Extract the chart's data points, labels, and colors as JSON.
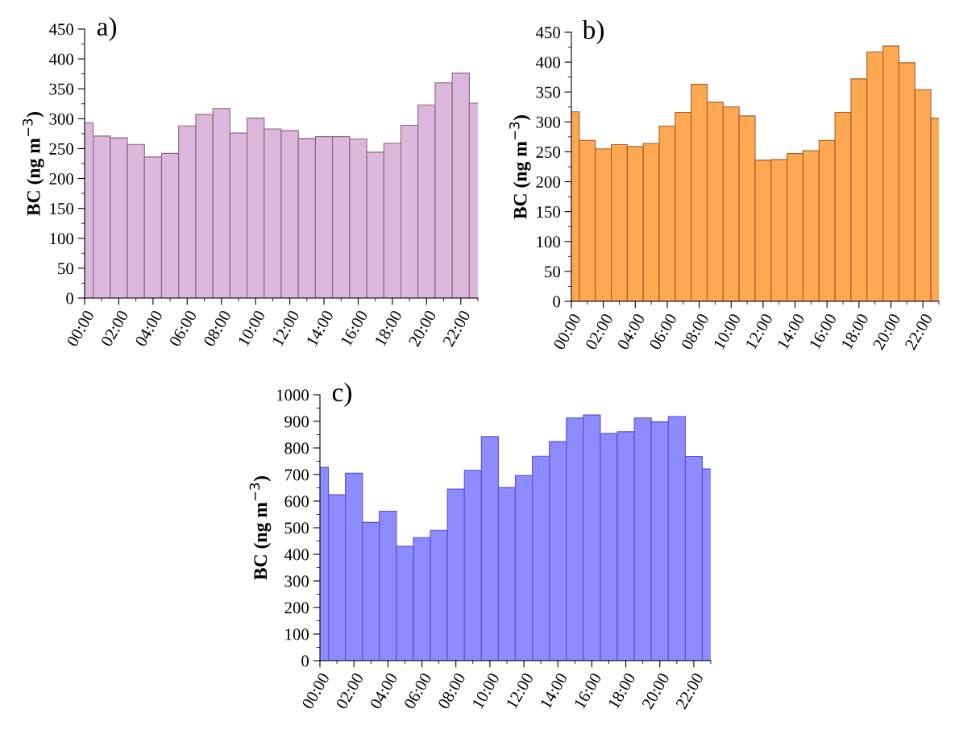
{
  "chart_data": [
    {
      "type": "bar",
      "title": "a)",
      "ylabel": "BC (ng m$^{−3}$)",
      "x": [
        0,
        1,
        2,
        3,
        4,
        5,
        6,
        7,
        8,
        9,
        10,
        11,
        12,
        13,
        14,
        15,
        16,
        17,
        18,
        19,
        20,
        21,
        22,
        23
      ],
      "xlim": [
        0,
        23
      ],
      "xticks": [
        {
          "value": 0,
          "label": "00:00"
        },
        {
          "value": 2,
          "label": "02:00"
        },
        {
          "value": 4,
          "label": "04:00"
        },
        {
          "value": 6,
          "label": "06:00"
        },
        {
          "value": 8,
          "label": "08:00"
        },
        {
          "value": 10,
          "label": "10:00"
        },
        {
          "value": 12,
          "label": "12:00"
        },
        {
          "value": 14,
          "label": "14:00"
        },
        {
          "value": 16,
          "label": "16:00"
        },
        {
          "value": 18,
          "label": "18:00"
        },
        {
          "value": 20,
          "label": "20:00"
        },
        {
          "value": 22,
          "label": "22:00"
        }
      ],
      "ylim": [
        0,
        450
      ],
      "yticks": [
        0,
        50,
        100,
        150,
        200,
        250,
        300,
        350,
        400,
        450
      ],
      "grid": false,
      "series": [
        {
          "color": "#dcb8dc",
          "values": [
            293,
            271,
            268,
            257,
            236,
            242,
            288,
            307,
            317,
            276,
            301,
            283,
            280,
            267,
            270,
            270,
            266,
            244,
            259,
            289,
            323,
            360,
            376,
            326
          ]
        }
      ]
    },
    {
      "type": "bar",
      "title": "b)",
      "ylabel": "BC (ng m$^{−3}$)",
      "x": [
        0,
        1,
        2,
        3,
        4,
        5,
        6,
        7,
        8,
        9,
        10,
        11,
        12,
        13,
        14,
        15,
        16,
        17,
        18,
        19,
        20,
        21,
        22,
        23
      ],
      "xlim": [
        0,
        23
      ],
      "xticks": [
        {
          "value": 0,
          "label": "00:00"
        },
        {
          "value": 2,
          "label": "02:00"
        },
        {
          "value": 4,
          "label": "04:00"
        },
        {
          "value": 6,
          "label": "06:00"
        },
        {
          "value": 8,
          "label": "08:00"
        },
        {
          "value": 10,
          "label": "10:00"
        },
        {
          "value": 12,
          "label": "12:00"
        },
        {
          "value": 14,
          "label": "14:00"
        },
        {
          "value": 16,
          "label": "16:00"
        },
        {
          "value": 18,
          "label": "18:00"
        },
        {
          "value": 20,
          "label": "20:00"
        },
        {
          "value": 22,
          "label": "22:00"
        }
      ],
      "ylim": [
        0,
        450
      ],
      "yticks": [
        0,
        50,
        100,
        150,
        200,
        250,
        300,
        350,
        400,
        450
      ],
      "grid": false,
      "series": [
        {
          "color": "#ffa852",
          "values": [
            317,
            269,
            255,
            262,
            259,
            264,
            293,
            316,
            363,
            333,
            325,
            310,
            236,
            237,
            247,
            252,
            269,
            316,
            372,
            417,
            427,
            399,
            354,
            306
          ]
        }
      ]
    },
    {
      "type": "bar",
      "title": "c)",
      "ylabel": "BC (ng m$^{−3}$)",
      "x": [
        0,
        1,
        2,
        3,
        4,
        5,
        6,
        7,
        8,
        9,
        10,
        11,
        12,
        13,
        14,
        15,
        16,
        17,
        18,
        19,
        20,
        21,
        22,
        23
      ],
      "xlim": [
        0,
        23
      ],
      "xticks": [
        {
          "value": 0,
          "label": "00:00"
        },
        {
          "value": 2,
          "label": "02:00"
        },
        {
          "value": 4,
          "label": "04:00"
        },
        {
          "value": 6,
          "label": "06:00"
        },
        {
          "value": 8,
          "label": "08:00"
        },
        {
          "value": 10,
          "label": "10:00"
        },
        {
          "value": 12,
          "label": "12:00"
        },
        {
          "value": 14,
          "label": "14:00"
        },
        {
          "value": 16,
          "label": "16:00"
        },
        {
          "value": 18,
          "label": "18:00"
        },
        {
          "value": 20,
          "label": "20:00"
        },
        {
          "value": 22,
          "label": "22:00"
        }
      ],
      "ylim": [
        0,
        1000
      ],
      "yticks": [
        0,
        100,
        200,
        300,
        400,
        500,
        600,
        700,
        800,
        900,
        1000
      ],
      "grid": false,
      "series": [
        {
          "color": "#8c8cff",
          "values": [
            727,
            624,
            705,
            520,
            562,
            430,
            463,
            490,
            645,
            716,
            843,
            651,
            696,
            769,
            824,
            913,
            924,
            854,
            861,
            913,
            898,
            918,
            768,
            721
          ]
        }
      ]
    }
  ]
}
